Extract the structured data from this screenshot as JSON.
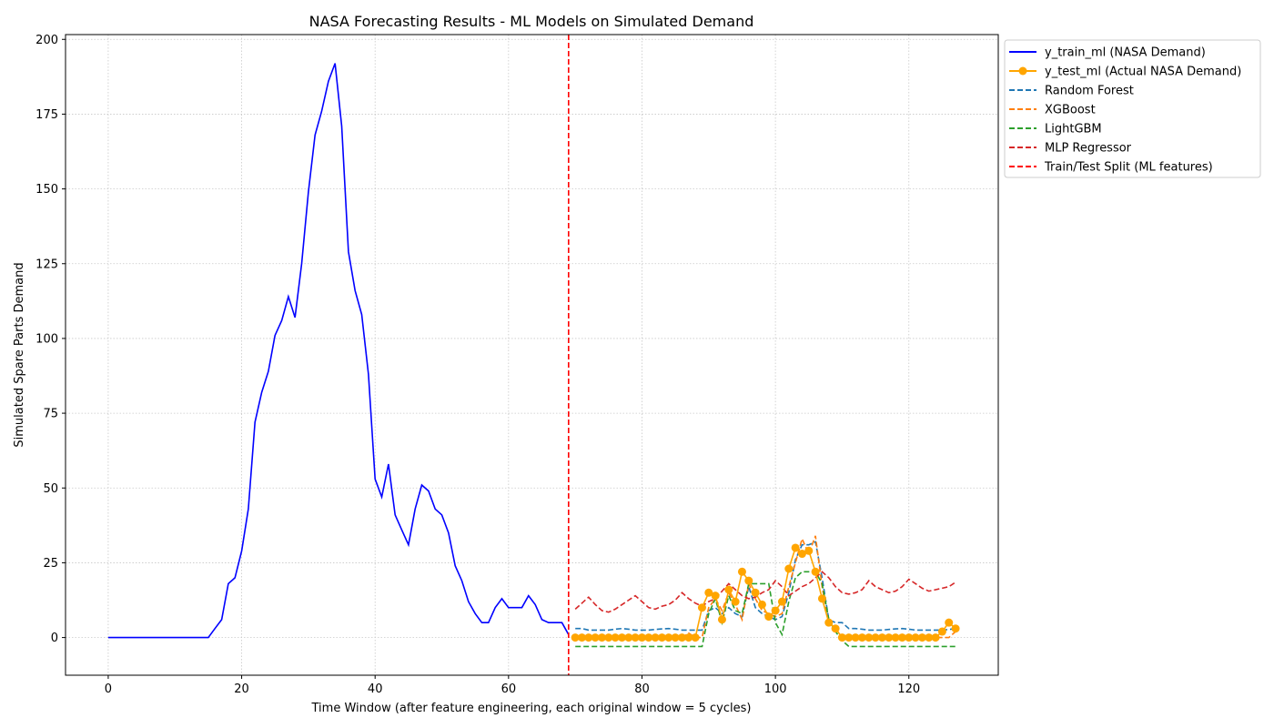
{
  "chart_data": {
    "type": "line",
    "title": "NASA Forecasting Results - ML Models on Simulated Demand",
    "xlabel": "Time Window (after feature engineering, each original window = 5 cycles)",
    "ylabel": "Simulated Spare Parts Demand",
    "xlim": [
      -6.4,
      133.4
    ],
    "ylim": [
      -12.6,
      201.6
    ],
    "xticks": [
      0,
      20,
      40,
      60,
      80,
      100,
      120
    ],
    "yticks": [
      0,
      25,
      50,
      75,
      100,
      125,
      150,
      175,
      200
    ],
    "grid": true,
    "legend_position": "outside-top-right",
    "split_x": 69,
    "legend": [
      {
        "label": "y_train_ml (NASA Demand)",
        "color": "#0000ff",
        "style": "solid"
      },
      {
        "label": "y_test_ml (Actual NASA Demand)",
        "color": "#ffa500",
        "style": "solid-marker"
      },
      {
        "label": "Random Forest",
        "color": "#1f77b4",
        "style": "dashed"
      },
      {
        "label": "XGBoost",
        "color": "#ff7f0e",
        "style": "dashed"
      },
      {
        "label": "LightGBM",
        "color": "#2ca02c",
        "style": "dashed"
      },
      {
        "label": "MLP Regressor",
        "color": "#d62728",
        "style": "dashed"
      },
      {
        "label": "Train/Test Split (ML features)",
        "color": "#ff0000",
        "style": "dashed"
      }
    ],
    "train": {
      "x_start": 0,
      "values": [
        0,
        0,
        0,
        0,
        0,
        0,
        0,
        0,
        0,
        0,
        0,
        0,
        0,
        0,
        0,
        0,
        3,
        6,
        18,
        20,
        29,
        43,
        72,
        82,
        89,
        101,
        106,
        114,
        107,
        125,
        149,
        168,
        176,
        186,
        192,
        171,
        129,
        116,
        108,
        88,
        53,
        47,
        58,
        41,
        36,
        31,
        43,
        51,
        49,
        43,
        41,
        35,
        24,
        19,
        12,
        8,
        5,
        5,
        10,
        13,
        10,
        10,
        10,
        14,
        11,
        6,
        5,
        5,
        5,
        1
      ]
    },
    "test_x_start": 70,
    "test": [
      0,
      0,
      0,
      0,
      0,
      0,
      0,
      0,
      0,
      0,
      0,
      0,
      0,
      0,
      0,
      0,
      0,
      0,
      0,
      10,
      15,
      14,
      6,
      16,
      12,
      22,
      19,
      15,
      11,
      7,
      9,
      12,
      23,
      30,
      28,
      29,
      22,
      13,
      5,
      3,
      0,
      0,
      0,
      0,
      0,
      0,
      0,
      0,
      0,
      0,
      0,
      0,
      0,
      0,
      0,
      2,
      5,
      3
    ],
    "series": [
      {
        "name": "Random Forest",
        "values": [
          3,
          3,
          2.5,
          2.5,
          2.5,
          2.5,
          2.8,
          3,
          2.8,
          2.5,
          2.5,
          2.5,
          2.7,
          2.9,
          3,
          2.8,
          2.5,
          2.5,
          2.5,
          2.5,
          9,
          10,
          8,
          10,
          8,
          7,
          17,
          10,
          8,
          7,
          6,
          7,
          15,
          26,
          31,
          31,
          32,
          20,
          6,
          5,
          5,
          3,
          3,
          2.8,
          2.5,
          2.5,
          2.5,
          2.7,
          2.9,
          3,
          2.8,
          2.5,
          2.5,
          2.5,
          2.5,
          2.5,
          2.7,
          3
        ]
      },
      {
        "name": "XGBoost",
        "values": [
          0,
          0.5,
          0.5,
          0.3,
          0,
          0,
          0,
          0,
          0,
          0,
          0,
          0,
          0,
          0,
          0,
          0,
          0,
          1.5,
          0,
          0,
          10,
          13,
          9,
          15,
          11,
          6,
          18,
          13,
          9,
          8,
          7,
          8,
          17,
          25,
          33,
          28,
          34,
          17,
          5,
          3,
          0,
          0,
          0,
          0,
          0,
          0,
          0,
          0,
          0,
          0,
          0,
          0,
          0,
          0,
          0,
          0,
          0,
          2
        ]
      },
      {
        "name": "LightGBM",
        "values": [
          -3,
          -3,
          -3,
          -3,
          -3,
          -3,
          -3,
          -3,
          -3,
          -3,
          -3,
          -3,
          -3,
          -3,
          -3,
          -3,
          -3,
          -3,
          -3,
          -3,
          8,
          13,
          5,
          14,
          9,
          8,
          18,
          18,
          18,
          18,
          5,
          1,
          12,
          20,
          22,
          22,
          22,
          18,
          6,
          2,
          -1,
          -3,
          -3,
          -3,
          -3,
          -3,
          -3,
          -3,
          -3,
          -3,
          -3,
          -3,
          -3,
          -3,
          -3,
          -3,
          -3,
          -3
        ]
      },
      {
        "name": "MLP Regressor",
        "values": [
          9.5,
          11.5,
          13.5,
          11,
          9,
          8.5,
          9.5,
          11,
          12.5,
          14,
          12,
          10,
          9.5,
          10.5,
          11,
          12.5,
          15,
          13,
          11.5,
          10.5,
          12,
          13,
          15.5,
          18,
          16,
          14,
          13,
          13.5,
          15,
          16,
          19,
          17,
          14,
          15.5,
          17,
          18,
          20,
          22,
          20,
          17,
          15,
          14.5,
          15,
          16,
          19,
          17,
          16,
          15,
          15.5,
          17,
          19.5,
          18,
          16.5,
          15.5,
          16,
          16.5,
          17,
          18.5
        ]
      }
    ]
  }
}
